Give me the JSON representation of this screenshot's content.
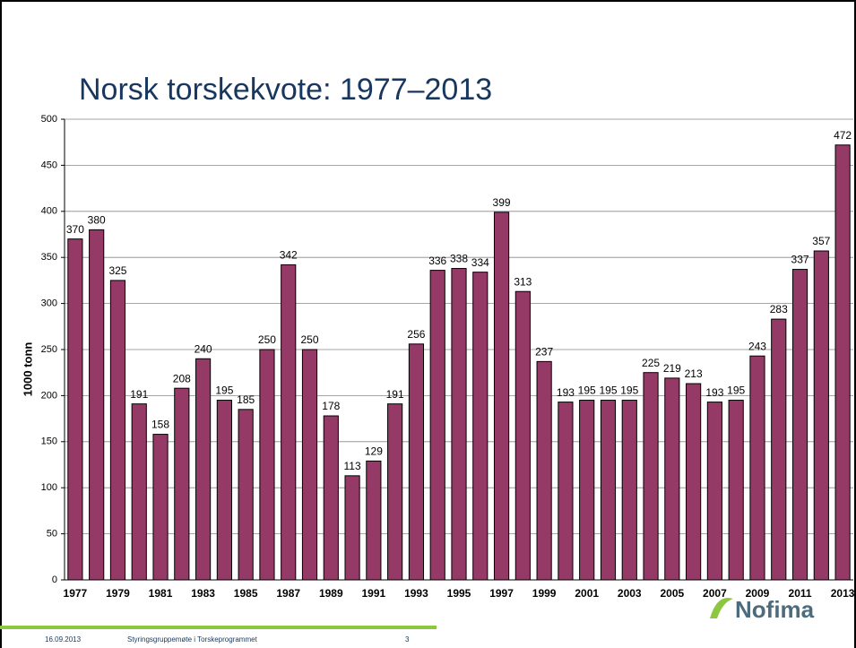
{
  "chart_data": {
    "type": "bar",
    "title": "Norsk torskekvote: 1977–2013",
    "y_label": "1000 tonn",
    "categories": [
      "1977",
      null,
      "1979",
      null,
      "1981",
      null,
      "1983",
      null,
      "1985",
      null,
      "1987",
      null,
      "1989",
      null,
      "1991",
      null,
      "1993",
      null,
      "1995",
      null,
      "1997",
      null,
      "1999",
      null,
      "2001",
      null,
      "2003",
      null,
      "2005",
      null,
      "2007",
      null,
      "2009",
      null,
      "2011",
      null,
      "2013"
    ],
    "values": [
      370,
      380,
      325,
      191,
      158,
      208,
      240,
      195,
      185,
      250,
      342,
      250,
      178,
      113,
      129,
      191,
      256,
      336,
      338,
      334,
      399,
      313,
      237,
      193,
      195,
      195,
      195,
      225,
      219,
      213,
      193,
      195,
      243,
      283,
      337,
      357,
      472
    ],
    "color": "#953a66",
    "ylim": [
      0,
      500
    ],
    "yticks": [
      0,
      50,
      100,
      150,
      200,
      250,
      300,
      350,
      400,
      450,
      500
    ],
    "grid": true
  },
  "footer": {
    "date": "16.09.2013",
    "text": "Styringsgruppemøte i Torskeprogrammet",
    "page": "3"
  },
  "logo": "Nofima"
}
